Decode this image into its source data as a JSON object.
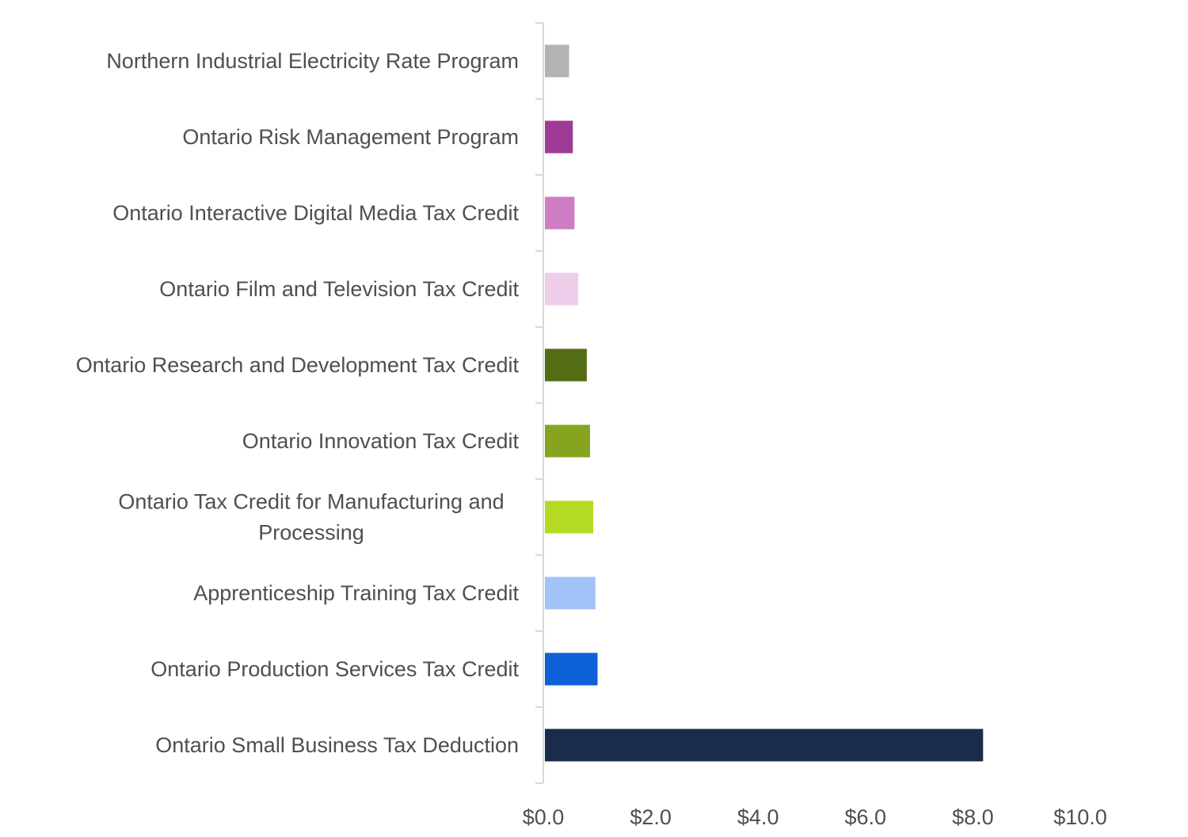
{
  "chart_data": {
    "type": "bar",
    "orientation": "horizontal",
    "title": "",
    "xlabel": "",
    "ylabel": "",
    "xlim": [
      0,
      10
    ],
    "x_ticks": [
      0,
      2,
      4,
      6,
      8,
      10
    ],
    "x_tick_labels": [
      "$0.0",
      "$2.0",
      "$4.0",
      "$6.0",
      "$8.0",
      "$10.0"
    ],
    "grid": false,
    "legend": "none",
    "categories": [
      "Northern Industrial Electricity Rate Program",
      "Ontario Risk Management Program",
      "Ontario Interactive Digital Media Tax Credit",
      "Ontario Film and Television Tax Credit",
      "Ontario Research and Development Tax Credit",
      "Ontario Innovation Tax Credit",
      "Ontario Tax Credit for Manufacturing and Processing",
      "Apprenticeship Training Tax Credit",
      "Ontario Production Services Tax Credit",
      "Ontario Small Business Tax Deduction"
    ],
    "category_lines": [
      [
        "Northern Industrial Electricity Rate Program"
      ],
      [
        "Ontario Risk Management Program"
      ],
      [
        "Ontario Interactive Digital Media Tax Credit"
      ],
      [
        "Ontario Film and Television Tax Credit"
      ],
      [
        "Ontario Research and Development Tax Credit"
      ],
      [
        "Ontario Innovation Tax Credit"
      ],
      [
        "Ontario Tax Credit for Manufacturing and",
        "Processing"
      ],
      [
        "Apprenticeship Training Tax Credit"
      ],
      [
        "Ontario Production Services Tax Credit"
      ],
      [
        "Ontario Small Business Tax Deduction"
      ]
    ],
    "values": [
      0.48,
      0.55,
      0.58,
      0.65,
      0.81,
      0.87,
      0.93,
      0.97,
      1.01,
      8.19
    ],
    "colors": [
      "#b3b3b3",
      "#a03a97",
      "#ce7dc5",
      "#edcdea",
      "#546c14",
      "#87a41f",
      "#b4da24",
      "#a1c3f7",
      "#0f61d7",
      "#1b2b4b"
    ],
    "axis_color": "#d9d9d9"
  }
}
